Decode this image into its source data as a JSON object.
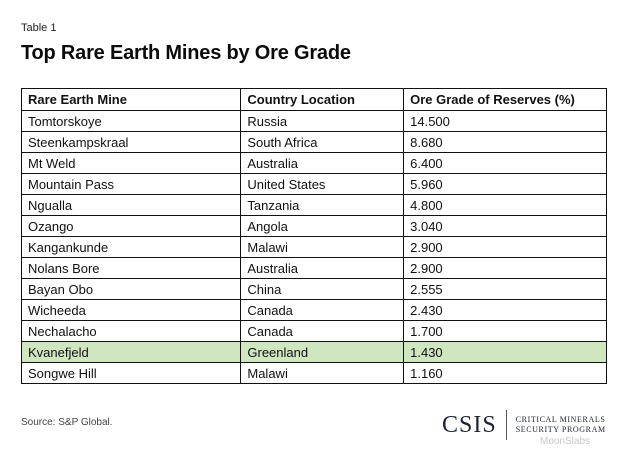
{
  "table_label": "Table 1",
  "title": "Top Rare Earth Mines by Ore Grade",
  "table": {
    "headers": [
      "Rare Earth Mine",
      "Country Location",
      "Ore Grade of Reserves (%)"
    ],
    "rows": [
      [
        "Tomtorskoye",
        "Russia",
        "14.500"
      ],
      [
        "Steenkampskraal",
        "South Africa",
        "8.680"
      ],
      [
        "Mt Weld",
        "Australia",
        "6.400"
      ],
      [
        "Mountain Pass",
        "United States",
        "5.960"
      ],
      [
        "Ngualla",
        "Tanzania",
        "4.800"
      ],
      [
        "Ozango",
        "Angola",
        "3.040"
      ],
      [
        "Kangankunde",
        "Malawi",
        "2.900"
      ],
      [
        "Nolans Bore",
        "Australia",
        "2.900"
      ],
      [
        "Bayan Obo",
        "China",
        "2.555"
      ],
      [
        "Wicheeda",
        "Canada",
        "2.430"
      ],
      [
        "Nechalacho",
        "Canada",
        "1.700"
      ],
      [
        "Kvanefjeld",
        "Greenland",
        "1.430"
      ],
      [
        "Songwe Hill",
        "Malawi",
        "1.160"
      ]
    ],
    "highlight_row": "Kvanefjeld",
    "highlight_color": "#cfe6c1"
  },
  "source": "Source: S&P Global.",
  "logo": {
    "name": "CSIS",
    "line1": "CRITICAL MINERALS",
    "line2": "SECURITY PROGRAM"
  },
  "watermark": "MoonSlabs"
}
